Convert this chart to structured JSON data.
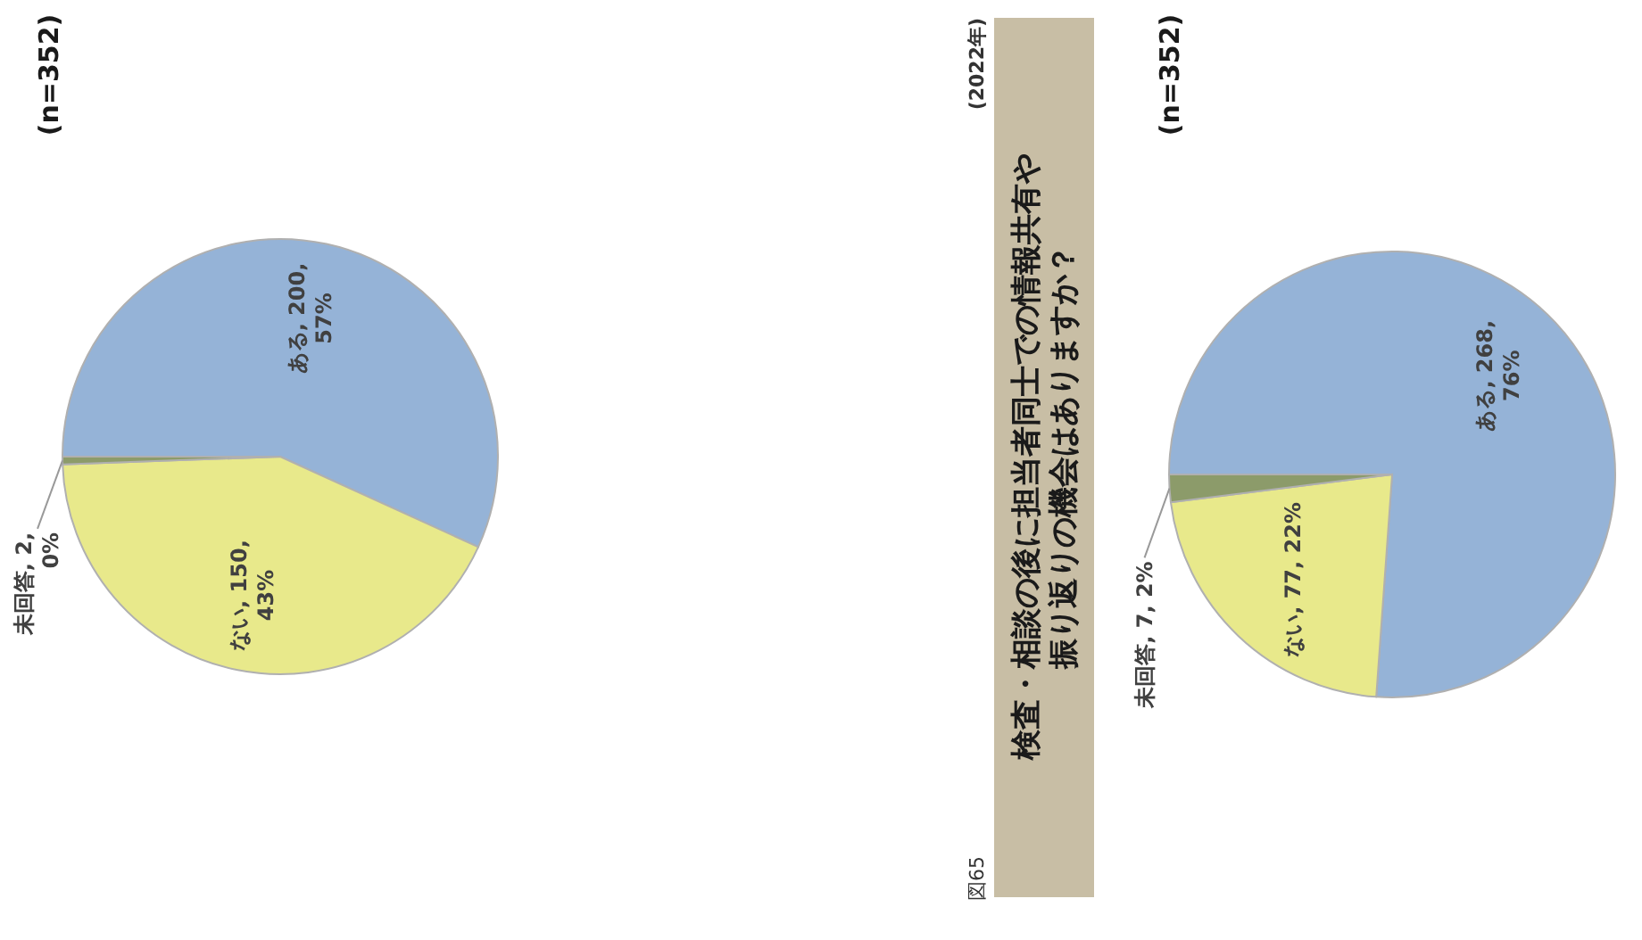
{
  "chart_data": [
    {
      "type": "pie",
      "subtitle": "(n=352)",
      "categories": [
        "ある",
        "ない",
        "未回答"
      ],
      "values": [
        200,
        150,
        2
      ],
      "colors": [
        "#95b3d7",
        "#e8e98b",
        "#8c9b6a"
      ],
      "value_labels": [
        "200,\n57%",
        "150,\n43%",
        "2,\n0%"
      ]
    },
    {
      "type": "pie",
      "title": "検査・相談の後に担当者同士での情報共有や振り返りの機会はありますか？",
      "subtitle": "(n=352)",
      "annotations": [
        "(2022年)",
        "図65"
      ],
      "categories": [
        "ある",
        "ない",
        "未回答"
      ],
      "values": [
        268,
        77,
        7
      ],
      "colors": [
        "#95b3d7",
        "#e8e98b",
        "#8c9b6a"
      ],
      "value_labels": [
        "268,\n76%",
        "77, 22%",
        "7, 2%"
      ]
    }
  ]
}
